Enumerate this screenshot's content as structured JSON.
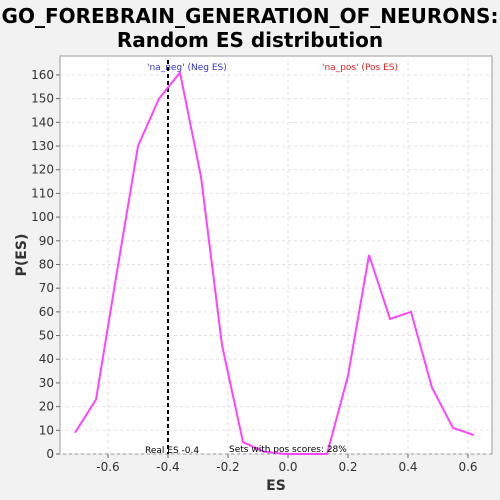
{
  "chart_data": {
    "type": "line",
    "title_line1": "GO_FOREBRAIN_GENERATION_OF_NEURONS:",
    "title_line2": "Random ES distribution",
    "xlabel": "ES",
    "ylabel": "P(ES)",
    "xlim": [
      -0.76,
      0.68
    ],
    "ylim": [
      0,
      168
    ],
    "xticks": [
      -0.6,
      -0.4,
      -0.2,
      0.0,
      0.2,
      0.4,
      0.6
    ],
    "xtick_labels": [
      "-0.6",
      "-0.4",
      "-0.2",
      "0.0",
      "0.2",
      "0.4",
      "0.6"
    ],
    "yticks": [
      0,
      10,
      20,
      30,
      40,
      50,
      60,
      70,
      80,
      90,
      100,
      110,
      120,
      130,
      140,
      150,
      160
    ],
    "grid": true,
    "series": [
      {
        "color": "#ff44ff",
        "x": [
          -0.71,
          -0.64,
          -0.57,
          -0.5,
          -0.43,
          -0.36,
          -0.29,
          -0.22,
          -0.15,
          -0.08,
          -0.01,
          0.06,
          0.13,
          0.2,
          0.27,
          0.34,
          0.41,
          0.48,
          0.55,
          0.62
        ],
        "y": [
          9,
          23,
          77,
          130,
          150,
          161,
          117,
          46,
          5,
          1,
          0,
          0,
          0,
          33,
          84,
          57,
          60,
          28,
          11,
          8
        ]
      }
    ],
    "real_es": {
      "value": -0.4,
      "label": "Real ES -0.4"
    },
    "annotations": {
      "neg_label": "'na_neg' (Neg ES)",
      "pos_label": "'na_pos' (Pos ES)",
      "pos_scores": "Sets with pos scores: 28%"
    },
    "colors": {
      "line": "#ff44ff",
      "neg": "#3333cc",
      "pos": "#dd2222",
      "real_es_line": "#000000"
    }
  }
}
